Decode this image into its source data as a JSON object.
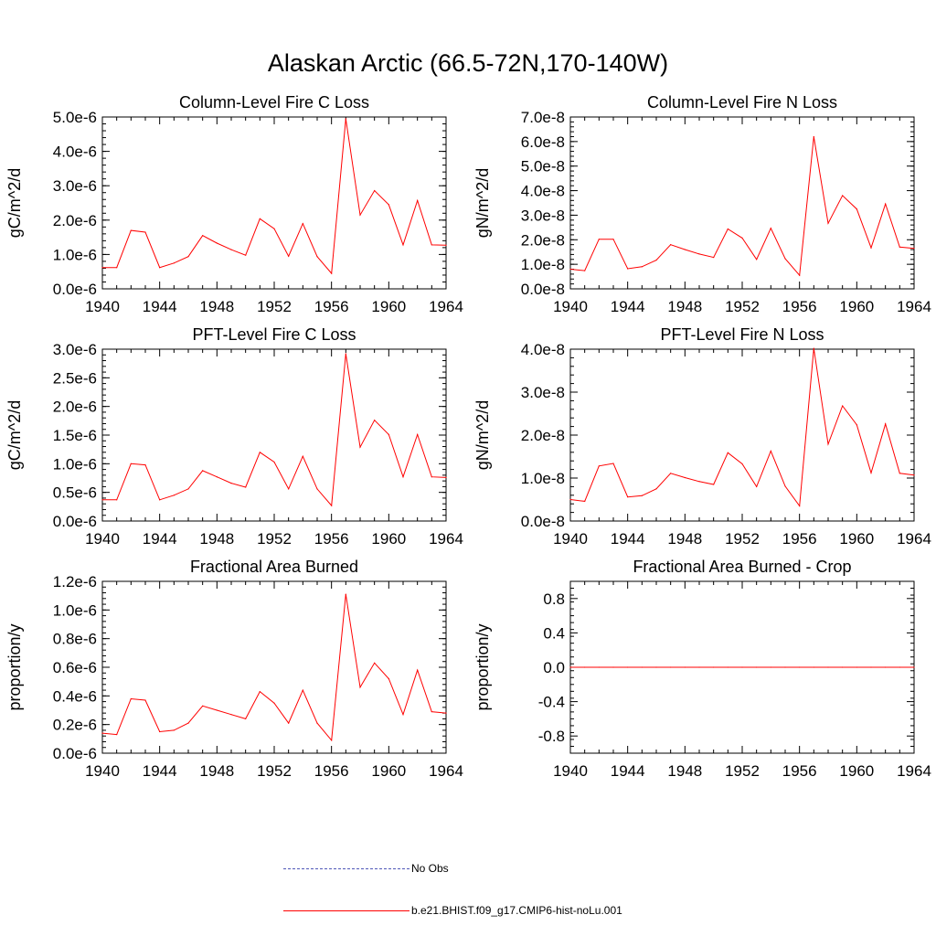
{
  "title": "Alaskan Arctic (66.5-72N,170-140W)",
  "colors": {
    "model": "#ff0000",
    "obs": "#4f57b8",
    "axis": "#000000"
  },
  "legend": {
    "items": [
      {
        "label": "No Obs",
        "style": "dashed",
        "color": "#4f57b8"
      },
      {
        "label": "b.e21.BHIST.f09_g17.CMIP6-hist-noLu.001",
        "style": "solid",
        "color": "#ff0000"
      }
    ],
    "placement": "bottom-center"
  },
  "chart_data": [
    {
      "type": "line",
      "title": "Column-Level Fire C Loss",
      "ylabel": "gC/m^2/d",
      "xlim": [
        1940,
        1964
      ],
      "ylim": [
        0,
        5e-06
      ],
      "xticks": [
        1940,
        1944,
        1948,
        1952,
        1956,
        1960,
        1964
      ],
      "xtick_labels": [
        "1940",
        "1944",
        "1948",
        "1952",
        "1956",
        "1960",
        "1964"
      ],
      "yticks": [
        0,
        1e-06,
        2e-06,
        3e-06,
        4e-06,
        5e-06
      ],
      "ytick_labels": [
        "0.0e-6",
        "1.0e-6",
        "2.0e-6",
        "3.0e-6",
        "4.0e-6",
        "5.0e-6"
      ],
      "x": [
        1940,
        1941,
        1942,
        1943,
        1944,
        1945,
        1946,
        1947,
        1948,
        1949,
        1950,
        1951,
        1952,
        1953,
        1954,
        1955,
        1956,
        1957,
        1958,
        1959,
        1960,
        1961,
        1962,
        1963,
        1964
      ],
      "series": [
        {
          "name": "b.e21.BHIST.f09_g17.CMIP6-hist-noLu.001",
          "values": [
            6.2e-07,
            6.2e-07,
            1.7e-06,
            1.65e-06,
            6.2e-07,
            7.5e-07,
            9.4e-07,
            1.55e-06,
            1.33e-06,
            1.14e-06,
            9.8e-07,
            2.04e-06,
            1.75e-06,
            9.5e-07,
            1.9e-06,
            9.4e-07,
            4.5e-07,
            4.95e-06,
            2.15e-06,
            2.86e-06,
            2.45e-06,
            1.28e-06,
            2.57e-06,
            1.28e-06,
            1.27e-06
          ]
        }
      ],
      "grid": false
    },
    {
      "type": "line",
      "title": "Column-Level Fire N Loss",
      "ylabel": "gN/m^2/d",
      "xlim": [
        1940,
        1964
      ],
      "ylim": [
        0,
        7e-08
      ],
      "xticks": [
        1940,
        1944,
        1948,
        1952,
        1956,
        1960,
        1964
      ],
      "xtick_labels": [
        "1940",
        "1944",
        "1948",
        "1952",
        "1956",
        "1960",
        "1964"
      ],
      "yticks": [
        0,
        1e-08,
        2e-08,
        3e-08,
        4e-08,
        5e-08,
        6e-08,
        7e-08
      ],
      "ytick_labels": [
        "0.0e-8",
        "1.0e-8",
        "2.0e-8",
        "3.0e-8",
        "4.0e-8",
        "5.0e-8",
        "6.0e-8",
        "7.0e-8"
      ],
      "x": [
        1940,
        1941,
        1942,
        1943,
        1944,
        1945,
        1946,
        1947,
        1948,
        1949,
        1950,
        1951,
        1952,
        1953,
        1954,
        1955,
        1956,
        1957,
        1958,
        1959,
        1960,
        1961,
        1962,
        1963,
        1964
      ],
      "series": [
        {
          "name": "b.e21.BHIST.f09_g17.CMIP6-hist-noLu.001",
          "values": [
            8e-09,
            7.4e-09,
            2.02e-08,
            2.02e-08,
            8.2e-09,
            9e-09,
            1.17e-08,
            1.8e-08,
            1.6e-08,
            1.42e-08,
            1.28e-08,
            2.44e-08,
            2.07e-08,
            1.2e-08,
            2.47e-08,
            1.23e-08,
            5.5e-09,
            6.2e-08,
            2.67e-08,
            3.8e-08,
            3.25e-08,
            1.67e-08,
            3.46e-08,
            1.7e-08,
            1.65e-08
          ]
        }
      ],
      "grid": false
    },
    {
      "type": "line",
      "title": "PFT-Level Fire C Loss",
      "ylabel": "gC/m^2/d",
      "xlim": [
        1940,
        1964
      ],
      "ylim": [
        0,
        3e-06
      ],
      "xticks": [
        1940,
        1944,
        1948,
        1952,
        1956,
        1960,
        1964
      ],
      "xtick_labels": [
        "1940",
        "1944",
        "1948",
        "1952",
        "1956",
        "1960",
        "1964"
      ],
      "yticks": [
        0,
        5e-07,
        1e-06,
        1.5e-06,
        2e-06,
        2.5e-06,
        3e-06
      ],
      "ytick_labels": [
        "0.0e-6",
        "0.5e-6",
        "1.0e-6",
        "1.5e-6",
        "2.0e-6",
        "2.5e-6",
        "3.0e-6"
      ],
      "x": [
        1940,
        1941,
        1942,
        1943,
        1944,
        1945,
        1946,
        1947,
        1948,
        1949,
        1950,
        1951,
        1952,
        1953,
        1954,
        1955,
        1956,
        1957,
        1958,
        1959,
        1960,
        1961,
        1962,
        1963,
        1964
      ],
      "series": [
        {
          "name": "b.e21.BHIST.f09_g17.CMIP6-hist-noLu.001",
          "values": [
            3.7e-07,
            3.7e-07,
            1e-06,
            9.8e-07,
            3.7e-07,
            4.5e-07,
            5.6e-07,
            8.8e-07,
            7.7e-07,
            6.6e-07,
            5.9e-07,
            1.2e-06,
            1.03e-06,
            5.6e-07,
            1.13e-06,
            5.6e-07,
            2.7e-07,
            2.92e-06,
            1.29e-06,
            1.76e-06,
            1.51e-06,
            7.7e-07,
            1.51e-06,
            7.7e-07,
            7.6e-07
          ]
        }
      ],
      "grid": false
    },
    {
      "type": "line",
      "title": "PFT-Level Fire N Loss",
      "ylabel": "gN/m^2/d",
      "xlim": [
        1940,
        1964
      ],
      "ylim": [
        0,
        4e-08
      ],
      "xticks": [
        1940,
        1944,
        1948,
        1952,
        1956,
        1960,
        1964
      ],
      "xtick_labels": [
        "1940",
        "1944",
        "1948",
        "1952",
        "1956",
        "1960",
        "1964"
      ],
      "yticks": [
        0,
        1e-08,
        2e-08,
        3e-08,
        4e-08
      ],
      "ytick_labels": [
        "0.0e-8",
        "1.0e-8",
        "2.0e-8",
        "3.0e-8",
        "4.0e-8"
      ],
      "x": [
        1940,
        1941,
        1942,
        1943,
        1944,
        1945,
        1946,
        1947,
        1948,
        1949,
        1950,
        1951,
        1952,
        1953,
        1954,
        1955,
        1956,
        1957,
        1958,
        1959,
        1960,
        1961,
        1962,
        1963,
        1964
      ],
      "series": [
        {
          "name": "b.e21.BHIST.f09_g17.CMIP6-hist-noLu.001",
          "values": [
            5e-09,
            4.6e-09,
            1.28e-08,
            1.34e-08,
            5.6e-09,
            5.9e-09,
            7.5e-09,
            1.11e-08,
            1.01e-08,
            9.2e-09,
            8.5e-09,
            1.59e-08,
            1.33e-08,
            8e-09,
            1.63e-08,
            8.1e-09,
            3.5e-09,
            4.02e-08,
            1.79e-08,
            2.68e-08,
            2.24e-08,
            1.12e-08,
            2.26e-08,
            1.11e-08,
            1.07e-08
          ]
        }
      ],
      "grid": false
    },
    {
      "type": "line",
      "title": "Fractional Area Burned",
      "ylabel": "proportion/y",
      "xlim": [
        1940,
        1964
      ],
      "ylim": [
        0,
        1.2e-06
      ],
      "xticks": [
        1940,
        1944,
        1948,
        1952,
        1956,
        1960,
        1964
      ],
      "xtick_labels": [
        "1940",
        "1944",
        "1948",
        "1952",
        "1956",
        "1960",
        "1964"
      ],
      "yticks": [
        0,
        2e-07,
        4e-07,
        6e-07,
        8e-07,
        1e-06,
        1.2e-06
      ],
      "ytick_labels": [
        "0.0e-6",
        "0.2e-6",
        "0.4e-6",
        "0.6e-6",
        "0.8e-6",
        "1.0e-6",
        "1.2e-6"
      ],
      "x": [
        1940,
        1941,
        1942,
        1943,
        1944,
        1945,
        1946,
        1947,
        1948,
        1949,
        1950,
        1951,
        1952,
        1953,
        1954,
        1955,
        1956,
        1957,
        1958,
        1959,
        1960,
        1961,
        1962,
        1963,
        1964
      ],
      "series": [
        {
          "name": "b.e21.BHIST.f09_g17.CMIP6-hist-noLu.001",
          "values": [
            1.4e-07,
            1.3e-07,
            3.8e-07,
            3.7e-07,
            1.5e-07,
            1.6e-07,
            2.1e-07,
            3.3e-07,
            3e-07,
            2.7e-07,
            2.4e-07,
            4.3e-07,
            3.5e-07,
            2.1e-07,
            4.4e-07,
            2.1e-07,
            9e-08,
            1.11e-06,
            4.6e-07,
            6.3e-07,
            5.2e-07,
            2.7e-07,
            5.8e-07,
            2.9e-07,
            2.8e-07
          ]
        }
      ],
      "grid": false
    },
    {
      "type": "line",
      "title": "Fractional Area Burned - Crop",
      "ylabel": "proportion/y",
      "xlim": [
        1940,
        1964
      ],
      "ylim": [
        -1.0,
        1.0
      ],
      "xticks": [
        1940,
        1944,
        1948,
        1952,
        1956,
        1960,
        1964
      ],
      "xtick_labels": [
        "1940",
        "1944",
        "1948",
        "1952",
        "1956",
        "1960",
        "1964"
      ],
      "yticks": [
        -0.8,
        -0.4,
        0.0,
        0.4,
        0.8
      ],
      "ytick_labels": [
        "-0.8",
        "-0.4",
        "0.0",
        "0.4",
        "0.8"
      ],
      "x": [
        1940,
        1941,
        1942,
        1943,
        1944,
        1945,
        1946,
        1947,
        1948,
        1949,
        1950,
        1951,
        1952,
        1953,
        1954,
        1955,
        1956,
        1957,
        1958,
        1959,
        1960,
        1961,
        1962,
        1963,
        1964
      ],
      "series": [
        {
          "name": "b.e21.BHIST.f09_g17.CMIP6-hist-noLu.001",
          "values": [
            0,
            0,
            0,
            0,
            0,
            0,
            0,
            0,
            0,
            0,
            0,
            0,
            0,
            0,
            0,
            0,
            0,
            0,
            0,
            0,
            0,
            0,
            0,
            0,
            0
          ]
        }
      ],
      "grid": false
    }
  ]
}
